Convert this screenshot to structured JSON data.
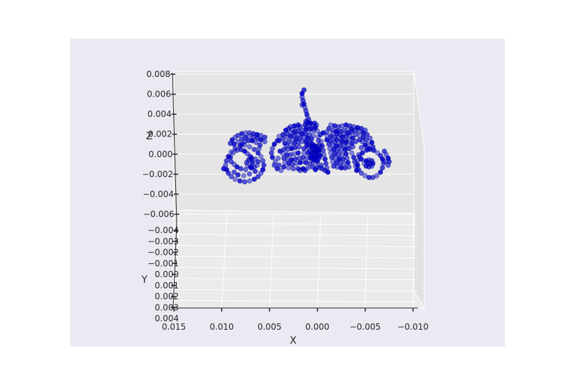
{
  "chart_data": {
    "type": "scatter",
    "projection": "3d",
    "title": "",
    "xlabel": "X",
    "ylabel": "Y",
    "zlabel": "Z",
    "grid": true,
    "point_color": "#0000cc",
    "background_color": "#eaeaf2",
    "xlim": [
      0.015,
      -0.01
    ],
    "zlim": [
      -0.008,
      0.008
    ],
    "x_ticks": [
      "0.015",
      "0.010",
      "0.005",
      "0.000",
      "−0.005",
      "−0.010"
    ],
    "z_ticks": [
      "0.008",
      "0.006",
      "0.004",
      "0.002",
      "0.000",
      "−0.002",
      "−0.004",
      "−0.006"
    ],
    "y_ticks": [
      "−0.004",
      "−0.003",
      "−0.002",
      "−0.001",
      "0.000",
      "0.001",
      "0.002",
      "0.003",
      "0.004"
    ],
    "shape_description": "tractor point cloud",
    "points": [
      [
        -0.0063,
        -0.001
      ],
      [
        -0.0059,
        -0.0007
      ],
      [
        -0.0055,
        -0.0006
      ],
      [
        -0.0051,
        -0.0007
      ],
      [
        -0.0047,
        -0.001
      ],
      [
        -0.0044,
        -0.0014
      ],
      [
        -0.0042,
        -0.0019
      ],
      [
        -0.0042,
        -0.0024
      ],
      [
        -0.0043,
        -0.0029
      ],
      [
        -0.0046,
        -0.0033
      ],
      [
        -0.005,
        -0.0036
      ],
      [
        -0.0054,
        -0.0038
      ],
      [
        -0.0058,
        -0.0038
      ],
      [
        -0.0062,
        -0.0036
      ],
      [
        -0.0066,
        -0.0032
      ],
      [
        -0.0068,
        -0.0027
      ],
      [
        -0.0069,
        -0.0022
      ],
      [
        -0.0068,
        -0.0017
      ],
      [
        -0.0066,
        -0.0013
      ],
      [
        -0.007,
        -0.002
      ],
      [
        -0.0049,
        -0.0022
      ],
      [
        -0.0051,
        -0.0025
      ],
      [
        -0.0054,
        -0.0026
      ],
      [
        -0.0057,
        -0.0025
      ],
      [
        -0.0058,
        -0.0022
      ],
      [
        -0.0057,
        -0.0019
      ],
      [
        -0.0054,
        -0.0018
      ],
      [
        -0.0051,
        -0.0019
      ],
      [
        -0.0053,
        -0.0021
      ],
      [
        -0.0055,
        -0.0023
      ],
      [
        0.0076,
        -0.0001
      ],
      [
        0.0081,
        -0.0002
      ],
      [
        0.0086,
        -0.0005
      ],
      [
        0.009,
        -0.0009
      ],
      [
        0.0093,
        -0.0014
      ],
      [
        0.0095,
        -0.0019
      ],
      [
        0.0096,
        -0.0024
      ],
      [
        0.0095,
        -0.0029
      ],
      [
        0.0093,
        -0.0033
      ],
      [
        0.009,
        -0.0037
      ],
      [
        0.0086,
        -0.004
      ],
      [
        0.0081,
        -0.0042
      ],
      [
        0.0076,
        -0.0043
      ],
      [
        0.0071,
        -0.0042
      ],
      [
        0.0066,
        -0.004
      ],
      [
        0.0062,
        -0.0037
      ],
      [
        0.0059,
        -0.0033
      ],
      [
        0.0057,
        -0.0029
      ],
      [
        0.0056,
        -0.0024
      ],
      [
        0.0057,
        -0.0019
      ],
      [
        0.0059,
        -0.0014
      ],
      [
        0.0062,
        -0.001
      ],
      [
        0.0066,
        -0.0006
      ],
      [
        0.0071,
        -0.0003
      ],
      [
        0.0098,
        -0.0028
      ],
      [
        0.0062,
        -0.002
      ],
      [
        0.0065,
        -0.0017
      ],
      [
        0.0069,
        -0.0016
      ],
      [
        0.0072,
        -0.0018
      ],
      [
        0.0074,
        -0.0021
      ],
      [
        0.0073,
        -0.0024
      ],
      [
        0.007,
        -0.0026
      ],
      [
        0.0066,
        -0.0026
      ],
      [
        0.0063,
        -0.0024
      ],
      [
        0.0068,
        -0.0021
      ],
      [
        0.007,
        -0.0014
      ],
      [
        0.0073,
        -0.0011
      ],
      [
        0.0076,
        -0.0008
      ],
      [
        0.008,
        -0.0006
      ],
      [
        0.0084,
        -0.0007
      ],
      [
        0.0088,
        -0.001
      ],
      [
        0.0091,
        -0.0015
      ],
      [
        0.009,
        -0.002
      ],
      [
        0.0087,
        -0.0023
      ],
      [
        0.0084,
        -0.0026
      ],
      [
        0.008,
        -0.0028
      ],
      [
        0.0075,
        -0.0029
      ],
      [
        0.0069,
        -0.0027
      ],
      [
        0.0065,
        -0.0031
      ],
      [
        0.0071,
        -0.0034
      ],
      [
        0.0077,
        -0.0036
      ],
      [
        0.0083,
        -0.0035
      ],
      [
        0.0087,
        -0.0032
      ],
      [
        0.0061,
        -0.0005
      ],
      [
        0.0079,
        0.0
      ],
      [
        0.0055,
        0.0008
      ],
      [
        0.0059,
        0.001
      ],
      [
        0.0063,
        0.0011
      ],
      [
        0.0067,
        0.0012
      ],
      [
        0.0071,
        0.0013
      ],
      [
        0.0075,
        0.0013
      ],
      [
        0.0079,
        0.0012
      ],
      [
        0.0083,
        0.001
      ],
      [
        0.0086,
        0.0008
      ],
      [
        0.0089,
        0.0005
      ],
      [
        0.0091,
        0.0001
      ],
      [
        0.0055,
        0.0003
      ],
      [
        0.0059,
        0.0005
      ],
      [
        0.0063,
        0.0007
      ],
      [
        0.0067,
        0.0008
      ],
      [
        0.0071,
        0.0009
      ],
      [
        0.0075,
        0.0008
      ],
      [
        0.0079,
        0.0006
      ],
      [
        0.0083,
        0.0003
      ],
      [
        0.0087,
        0.0
      ],
      [
        0.006,
        -0.0001
      ],
      [
        0.0064,
        0.0002
      ],
      [
        0.0068,
        0.0004
      ],
      [
        0.0072,
        0.0004
      ],
      [
        0.0076,
        0.0003
      ],
      [
        0.004,
        0.0009
      ],
      [
        0.0036,
        0.0011
      ],
      [
        0.0032,
        0.0012
      ],
      [
        0.0028,
        0.0013
      ],
      [
        0.0024,
        0.0014
      ],
      [
        0.002,
        0.0015
      ],
      [
        0.0016,
        0.0016
      ],
      [
        0.0012,
        0.0017
      ],
      [
        0.0008,
        0.0017
      ],
      [
        0.0004,
        0.0016
      ],
      [
        0.0,
        0.0015
      ],
      [
        0.004,
        0.0004
      ],
      [
        0.0036,
        0.0006
      ],
      [
        0.0032,
        0.0008
      ],
      [
        0.0028,
        0.0009
      ],
      [
        0.0024,
        0.001
      ],
      [
        0.002,
        0.0011
      ],
      [
        0.0016,
        0.0012
      ],
      [
        0.0012,
        0.0012
      ],
      [
        0.0008,
        0.0011
      ],
      [
        0.0004,
        0.001
      ],
      [
        0.0034,
        0.0001
      ],
      [
        0.003,
        0.0003
      ],
      [
        0.0026,
        0.0005
      ],
      [
        0.0022,
        0.0006
      ],
      [
        0.0018,
        0.0007
      ],
      [
        0.0014,
        0.0008
      ],
      [
        0.001,
        0.0007
      ],
      [
        0.0006,
        0.0006
      ],
      [
        0.0032,
        -0.0002
      ],
      [
        0.0028,
        -0.0001
      ],
      [
        0.0024,
        0.0001
      ],
      [
        0.002,
        0.0002
      ],
      [
        0.0016,
        0.0003
      ],
      [
        0.0012,
        0.0003
      ],
      [
        0.0035,
        -0.0006
      ],
      [
        0.0031,
        -0.0006
      ],
      [
        0.0027,
        -0.0005
      ],
      [
        0.0023,
        -0.0004
      ],
      [
        0.0019,
        -0.0003
      ],
      [
        0.0036,
        -0.0011
      ],
      [
        0.0032,
        -0.0012
      ],
      [
        0.0028,
        -0.0012
      ],
      [
        0.0024,
        -0.0011
      ],
      [
        0.002,
        -0.001
      ],
      [
        0.0035,
        -0.0016
      ],
      [
        0.0031,
        -0.0017
      ],
      [
        0.0027,
        -0.0018
      ],
      [
        0.0023,
        -0.0017
      ],
      [
        0.0019,
        -0.0016
      ],
      [
        0.0034,
        -0.0021
      ],
      [
        0.003,
        -0.0022
      ],
      [
        0.0026,
        -0.0023
      ],
      [
        0.0022,
        -0.0022
      ],
      [
        0.0018,
        -0.0021
      ],
      [
        0.0014,
        -0.0005
      ],
      [
        0.001,
        -0.0004
      ],
      [
        0.0006,
        -0.0003
      ],
      [
        0.0002,
        -0.0002
      ],
      [
        -0.0002,
        -0.0001
      ],
      [
        0.0014,
        -0.001
      ],
      [
        0.001,
        -0.001
      ],
      [
        0.0006,
        -0.0009
      ],
      [
        0.0002,
        -0.0008
      ],
      [
        -0.0002,
        -0.0007
      ],
      [
        0.0015,
        -0.0015
      ],
      [
        0.0011,
        -0.0016
      ],
      [
        0.0007,
        -0.0016
      ],
      [
        0.0003,
        -0.0015
      ],
      [
        -0.0001,
        -0.0014
      ],
      [
        0.0016,
        -0.002
      ],
      [
        0.0012,
        -0.0021
      ],
      [
        0.0008,
        -0.0022
      ],
      [
        0.0004,
        -0.0021
      ],
      [
        0.0,
        -0.002
      ],
      [
        0.0005,
        -0.0026
      ],
      [
        0.001,
        -0.0027
      ],
      [
        0.0015,
        -0.0028
      ],
      [
        0.002,
        -0.0028
      ],
      [
        0.0025,
        -0.0028
      ],
      [
        0.003,
        -0.0027
      ],
      [
        0.0035,
        -0.0026
      ],
      [
        0.004,
        -0.0024
      ],
      [
        0.0044,
        -0.002
      ],
      [
        0.0047,
        -0.0015
      ],
      [
        0.0048,
        -0.001
      ],
      [
        0.0047,
        -0.0005
      ],
      [
        0.0045,
        0.0
      ],
      [
        0.0042,
        0.0004
      ],
      [
        -0.0004,
        -0.0024
      ],
      [
        -0.0004,
        0.0003
      ],
      [
        -0.0005,
        -0.0002
      ],
      [
        -0.0006,
        -0.0007
      ],
      [
        -0.0007,
        -0.0012
      ],
      [
        -0.0008,
        -0.0017
      ],
      [
        -0.0009,
        -0.0022
      ],
      [
        -0.001,
        -0.0027
      ],
      [
        -0.0011,
        -0.0032
      ],
      [
        -0.0008,
        -0.003
      ],
      [
        -0.0005,
        -0.0028
      ],
      [
        -0.0001,
        0.0008
      ],
      [
        0.0001,
        -0.001
      ],
      [
        0.0002,
        -0.0012
      ],
      [
        0.0004,
        -0.0009
      ],
      [
        0.0003,
        -0.0006
      ],
      [
        0.0,
        -0.0008
      ],
      [
        -0.0002,
        -0.0011
      ],
      [
        -0.0003,
        -0.0013
      ],
      [
        0.0005,
        -0.0011
      ],
      [
        0.0006,
        -0.0013
      ],
      [
        0.0001,
        -0.0004
      ],
      [
        -0.0001,
        -0.0006
      ],
      [
        0.0003,
        -0.0002
      ],
      [
        0.0005,
        -0.0005
      ],
      [
        0.0002,
        -0.0015
      ],
      [
        0.0,
        -0.0017
      ],
      [
        -0.0002,
        -0.0016
      ],
      [
        0.0004,
        -0.0018
      ],
      [
        0.0007,
        -0.0014
      ],
      [
        0.0008,
        -0.0008
      ],
      [
        -0.001,
        0.001
      ],
      [
        -0.0014,
        0.0009
      ],
      [
        -0.0018,
        0.0008
      ],
      [
        -0.0022,
        0.0008
      ],
      [
        -0.0026,
        0.0008
      ],
      [
        -0.003,
        0.0009
      ],
      [
        -0.0034,
        0.001
      ],
      [
        -0.001,
        0.0005
      ],
      [
        -0.0014,
        0.0004
      ],
      [
        -0.0018,
        0.0003
      ],
      [
        -0.0022,
        0.0003
      ],
      [
        -0.0026,
        0.0003
      ],
      [
        -0.003,
        0.0004
      ],
      [
        -0.0034,
        0.0005
      ],
      [
        -0.0037,
        0.0007
      ],
      [
        -0.0012,
        0.0
      ],
      [
        -0.0016,
        -0.0001
      ],
      [
        -0.002,
        -0.0002
      ],
      [
        -0.0024,
        -0.0002
      ],
      [
        -0.0028,
        -0.0002
      ],
      [
        -0.0032,
        -0.0001
      ],
      [
        -0.0036,
        0.0001
      ],
      [
        -0.004,
        0.0003
      ],
      [
        -0.0013,
        -0.0005
      ],
      [
        -0.0017,
        -0.0006
      ],
      [
        -0.0021,
        -0.0007
      ],
      [
        -0.0025,
        -0.0007
      ],
      [
        -0.0029,
        -0.0006
      ],
      [
        -0.0033,
        -0.0005
      ],
      [
        -0.0037,
        -0.0003
      ],
      [
        -0.0014,
        -0.001
      ],
      [
        -0.0018,
        -0.0011
      ],
      [
        -0.0022,
        -0.0012
      ],
      [
        -0.0026,
        -0.0012
      ],
      [
        -0.003,
        -0.0011
      ],
      [
        -0.0015,
        -0.0015
      ],
      [
        -0.0019,
        -0.0016
      ],
      [
        -0.0023,
        -0.0017
      ],
      [
        -0.0027,
        -0.0017
      ],
      [
        -0.0031,
        -0.0016
      ],
      [
        -0.0016,
        -0.002
      ],
      [
        -0.002,
        -0.0021
      ],
      [
        -0.0024,
        -0.0022
      ],
      [
        -0.0028,
        -0.0022
      ],
      [
        -0.0032,
        -0.0021
      ],
      [
        -0.0017,
        -0.0025
      ],
      [
        -0.0021,
        -0.0026
      ],
      [
        -0.0025,
        -0.0027
      ],
      [
        -0.0029,
        -0.0027
      ],
      [
        -0.0033,
        -0.0026
      ],
      [
        -0.0036,
        -0.001
      ],
      [
        -0.0038,
        -0.0015
      ],
      [
        -0.0039,
        -0.002
      ],
      [
        -0.004,
        -0.0025
      ],
      [
        -0.0041,
        -0.003
      ],
      [
        -0.0012,
        0.0018
      ],
      [
        -0.0016,
        0.0016
      ],
      [
        -0.002,
        0.0015
      ],
      [
        -0.0024,
        0.0015
      ],
      [
        -0.0028,
        0.0016
      ],
      [
        -0.0032,
        0.0017
      ],
      [
        -0.0036,
        0.0017
      ],
      [
        -0.004,
        0.0016
      ],
      [
        -0.0044,
        0.0015
      ],
      [
        -0.0048,
        0.0013
      ],
      [
        -0.0052,
        0.0011
      ],
      [
        -0.0055,
        0.0007
      ],
      [
        -0.0057,
        0.0002
      ],
      [
        -0.0058,
        -0.0003
      ],
      [
        -0.004,
        0.0011
      ],
      [
        -0.0044,
        0.001
      ],
      [
        -0.0048,
        0.0008
      ],
      [
        -0.0051,
        0.0005
      ],
      [
        -0.0053,
        0.0
      ],
      [
        -0.0054,
        -0.0005
      ],
      [
        -0.0044,
        0.0005
      ],
      [
        -0.0047,
        0.0003
      ],
      [
        -0.005,
        -0.0001
      ],
      [
        -0.0052,
        -0.0006
      ],
      [
        -0.0046,
        -0.0004
      ],
      [
        -0.0025,
        0.0004
      ],
      [
        -0.003,
        0.0002
      ],
      [
        -0.002,
        0.0005
      ],
      [
        -0.0043,
        -0.0012
      ],
      [
        -0.0046,
        -0.0017
      ],
      [
        -0.007,
        -0.0008
      ],
      [
        -0.0072,
        -0.0012
      ],
      [
        -0.0074,
        -0.0016
      ],
      [
        -0.0075,
        -0.002
      ],
      [
        -0.0074,
        -0.0024
      ],
      [
        0.001,
        0.003
      ],
      [
        0.0011,
        0.0034
      ],
      [
        0.0012,
        0.0038
      ],
      [
        0.0013,
        0.0042
      ],
      [
        0.0014,
        0.0046
      ],
      [
        0.0015,
        0.005
      ],
      [
        0.0016,
        0.0054
      ],
      [
        0.0016,
        0.0058
      ],
      [
        0.0014,
        0.0062
      ],
      [
        0.0016,
        0.0045
      ],
      [
        0.0008,
        0.0022
      ],
      [
        0.001,
        0.0025
      ],
      [
        0.0006,
        0.0018
      ],
      [
        0.0004,
        0.0021
      ],
      [
        0.0002,
        0.0019
      ],
      [
        0.0012,
        0.0026
      ],
      [
        0.0009,
        0.0028
      ],
      [
        0.0007,
        0.0024
      ],
      [
        0.0013,
        0.0022
      ],
      [
        0.0011,
        0.002
      ],
      [
        0.0022,
        0.0019
      ],
      [
        0.002,
        0.0022
      ],
      [
        0.0018,
        0.002
      ],
      [
        0.0026,
        0.0017
      ],
      [
        0.0024,
        0.0021
      ],
      [
        0.003,
        0.0018
      ],
      [
        0.0028,
        0.002
      ],
      [
        0.0033,
        0.0016
      ],
      [
        0.0003,
        0.0024
      ],
      [
        0.0001,
        0.0022
      ],
      [
        -0.0014,
        0.0022
      ],
      [
        -0.0018,
        0.0021
      ],
      [
        -0.0022,
        0.002
      ],
      [
        -0.0026,
        0.0021
      ],
      [
        -0.003,
        0.0022
      ],
      [
        -0.0034,
        0.0021
      ],
      [
        -0.0038,
        0.002
      ],
      [
        -0.0042,
        0.0019
      ],
      [
        -0.0046,
        0.0018
      ],
      [
        -0.005,
        0.0016
      ],
      [
        -0.0016,
        0.0013
      ],
      [
        -0.002,
        0.0012
      ],
      [
        -0.0024,
        0.0011
      ],
      [
        -0.0028,
        0.0012
      ],
      [
        -0.0032,
        0.0013
      ],
      [
        -0.0036,
        0.0014
      ],
      [
        -0.001,
        0.0014
      ],
      [
        -0.0006,
        0.0013
      ],
      [
        -0.0003,
        0.0011
      ],
      [
        -0.0001,
        0.0004
      ],
      [
        -0.0002,
        -0.0003
      ],
      [
        0.0005,
        0.0
      ],
      [
        0.0007,
        0.0002
      ],
      [
        0.0009,
        0.0001
      ],
      [
        0.0011,
        -0.0001
      ],
      [
        0.0,
        -0.0026
      ],
      [
        -0.0003,
        -0.0027
      ],
      [
        0.0002,
        -0.0029
      ],
      [
        0.0013,
        -0.003
      ],
      [
        0.0018,
        -0.003
      ],
      [
        0.0038,
        -0.003
      ],
      [
        0.0042,
        -0.0028
      ],
      [
        0.0045,
        -0.0024
      ],
      [
        0.0041,
        -0.0016
      ],
      [
        0.0039,
        -0.0008
      ]
    ]
  }
}
